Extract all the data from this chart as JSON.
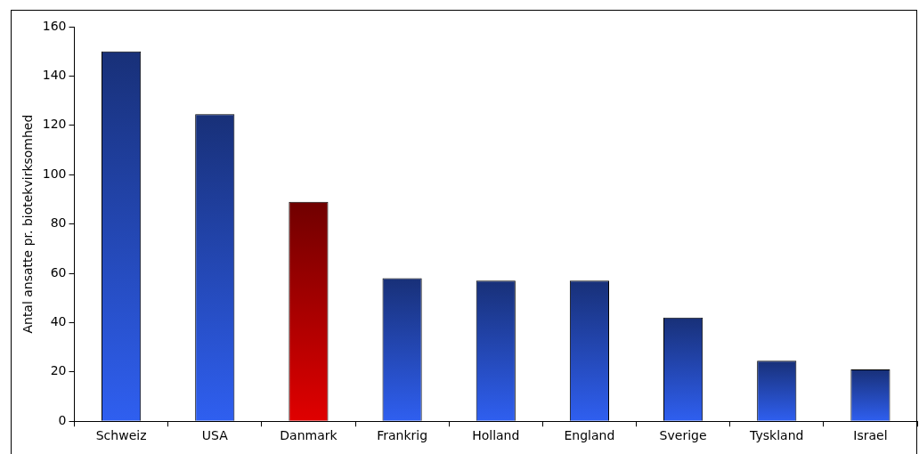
{
  "chart_data": {
    "type": "bar",
    "ylabel": "Antal ansatte pr. biotekvirksomhed",
    "categories": [
      "Schweiz",
      "USA",
      "Danmark",
      "Frankrig",
      "Holland",
      "England",
      "Sverige",
      "Tyskland",
      "Israel"
    ],
    "values": [
      150,
      124.5,
      89,
      58,
      57,
      57,
      42,
      24.5,
      21
    ],
    "colors": [
      "#2f5ff0",
      "#2f5ff0",
      "#e00000",
      "#2f5ff0",
      "#2f5ff0",
      "#2f5ff0",
      "#2f5ff0",
      "#2f5ff0",
      "#2f5ff0"
    ],
    "ylim": [
      0,
      160
    ],
    "yticks": [
      0,
      20,
      40,
      60,
      80,
      100,
      120,
      140,
      160
    ],
    "grid": false,
    "legend": false
  }
}
